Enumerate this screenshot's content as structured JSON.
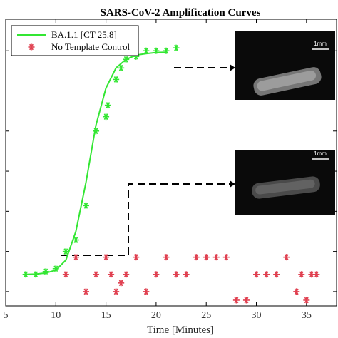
{
  "chart_data": {
    "type": "scatter",
    "title": "SARS-CoV-2 Amplification Curves",
    "xlabel": "Time [Minutes]",
    "ylabel": "",
    "xlim": [
      5,
      38
    ],
    "ylim": [
      0,
      1
    ],
    "xticks": [
      "5",
      "10",
      "15",
      "20",
      "25",
      "30",
      "35"
    ],
    "grid": false,
    "legend_position": "top-left",
    "series": [
      {
        "name": "BA.1.1 [CT 25.8]",
        "color": "#33e633",
        "marker": "asterisk",
        "points": [
          [
            7,
            0.11
          ],
          [
            8,
            0.11
          ],
          [
            9,
            0.12
          ],
          [
            10,
            0.13
          ],
          [
            11,
            0.19
          ],
          [
            12,
            0.23
          ],
          [
            13,
            0.35
          ],
          [
            14,
            0.61
          ],
          [
            15,
            0.66
          ],
          [
            15.2,
            0.7
          ],
          [
            16,
            0.79
          ],
          [
            16.5,
            0.83
          ],
          [
            17,
            0.86
          ],
          [
            18,
            0.87
          ],
          [
            19,
            0.89
          ],
          [
            20,
            0.89
          ],
          [
            21,
            0.89
          ],
          [
            22,
            0.9
          ]
        ]
      },
      {
        "name": "",
        "color": "#33e633",
        "marker": "none",
        "line": true,
        "points": [
          [
            7,
            0.11
          ],
          [
            8,
            0.111
          ],
          [
            9,
            0.115
          ],
          [
            10,
            0.125
          ],
          [
            11,
            0.16
          ],
          [
            12,
            0.26
          ],
          [
            13,
            0.43
          ],
          [
            14,
            0.63
          ],
          [
            15,
            0.76
          ],
          [
            16,
            0.83
          ],
          [
            17,
            0.86
          ],
          [
            18,
            0.875
          ],
          [
            19,
            0.88
          ],
          [
            20,
            0.884
          ],
          [
            21,
            0.885
          ]
        ]
      },
      {
        "name": "No Template Control",
        "color": "#e04050",
        "marker": "asterisk",
        "points": [
          [
            11,
            0.11
          ],
          [
            12,
            0.17
          ],
          [
            13,
            0.05
          ],
          [
            14,
            0.11
          ],
          [
            15,
            0.17
          ],
          [
            15.5,
            0.11
          ],
          [
            16,
            0.05
          ],
          [
            16.5,
            0.08
          ],
          [
            17,
            0.11
          ],
          [
            18,
            0.17
          ],
          [
            19,
            0.05
          ],
          [
            20,
            0.11
          ],
          [
            21,
            0.17
          ],
          [
            22,
            0.11
          ],
          [
            23,
            0.11
          ],
          [
            24,
            0.17
          ],
          [
            25,
            0.17
          ],
          [
            26,
            0.17
          ],
          [
            27,
            0.17
          ],
          [
            28,
            0.02
          ],
          [
            29,
            0.02
          ],
          [
            30,
            0.11
          ],
          [
            31,
            0.11
          ],
          [
            32,
            0.11
          ],
          [
            33,
            0.17
          ],
          [
            34,
            0.05
          ],
          [
            34.5,
            0.11
          ],
          [
            35,
            0.02
          ],
          [
            35.5,
            0.11
          ],
          [
            36,
            0.11
          ]
        ]
      }
    ],
    "annotations": [
      {
        "label": "1mm",
        "description": "inset fluorescence image, saturated sample"
      },
      {
        "label": "1mm",
        "description": "inset fluorescence image, baseline sample"
      }
    ]
  }
}
